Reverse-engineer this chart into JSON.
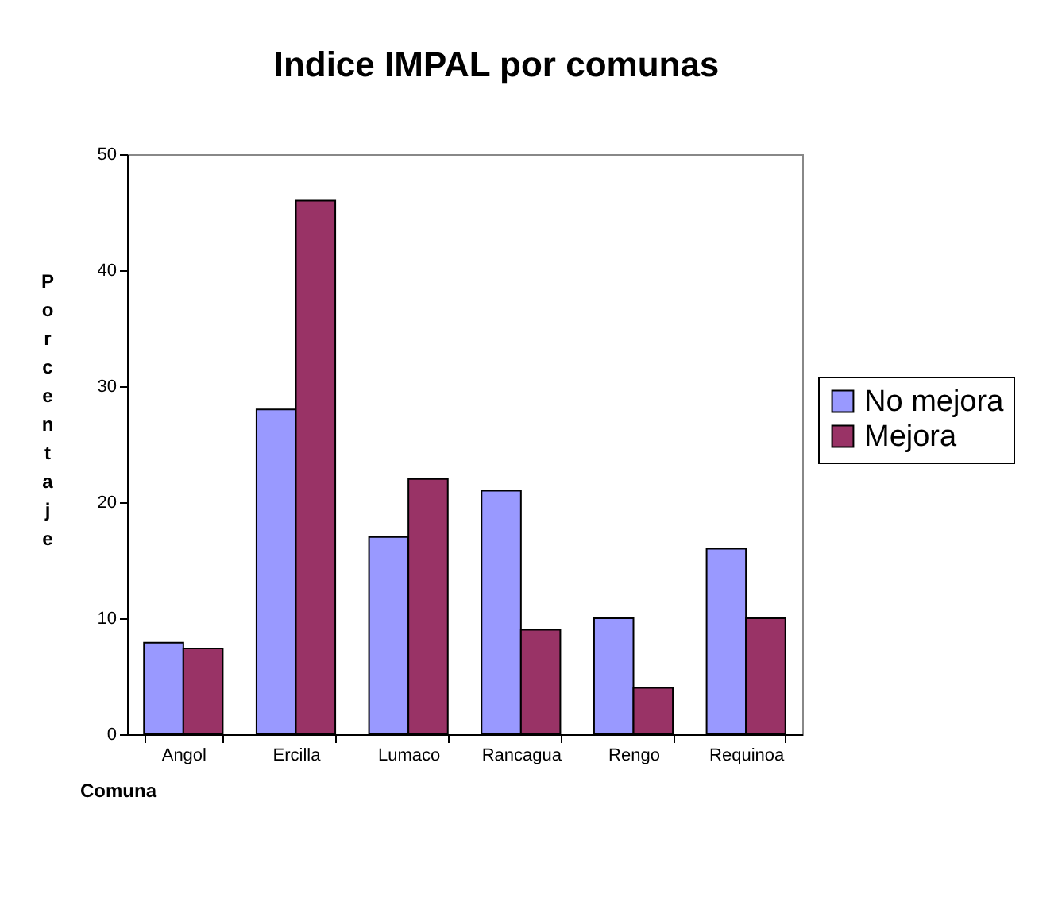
{
  "chart_data": {
    "type": "bar",
    "title": "Indice IMPAL por comunas",
    "xlabel": "Comuna",
    "ylabel": "Porcentaje",
    "categories": [
      "Angol",
      "Ercilla",
      "Lumaco",
      "Rancagua",
      "Rengo",
      "Requinoa"
    ],
    "series": [
      {
        "name": "No mejora",
        "color": "#9999ff",
        "values": [
          7.9,
          28,
          17,
          21,
          10,
          16
        ]
      },
      {
        "name": "Mejora",
        "color": "#993366",
        "values": [
          7.4,
          46,
          22,
          9,
          4,
          10
        ]
      }
    ],
    "ylim": [
      0,
      50
    ],
    "yticks": [
      0,
      10,
      20,
      30,
      40,
      50
    ],
    "grid": false,
    "legend": "right"
  }
}
